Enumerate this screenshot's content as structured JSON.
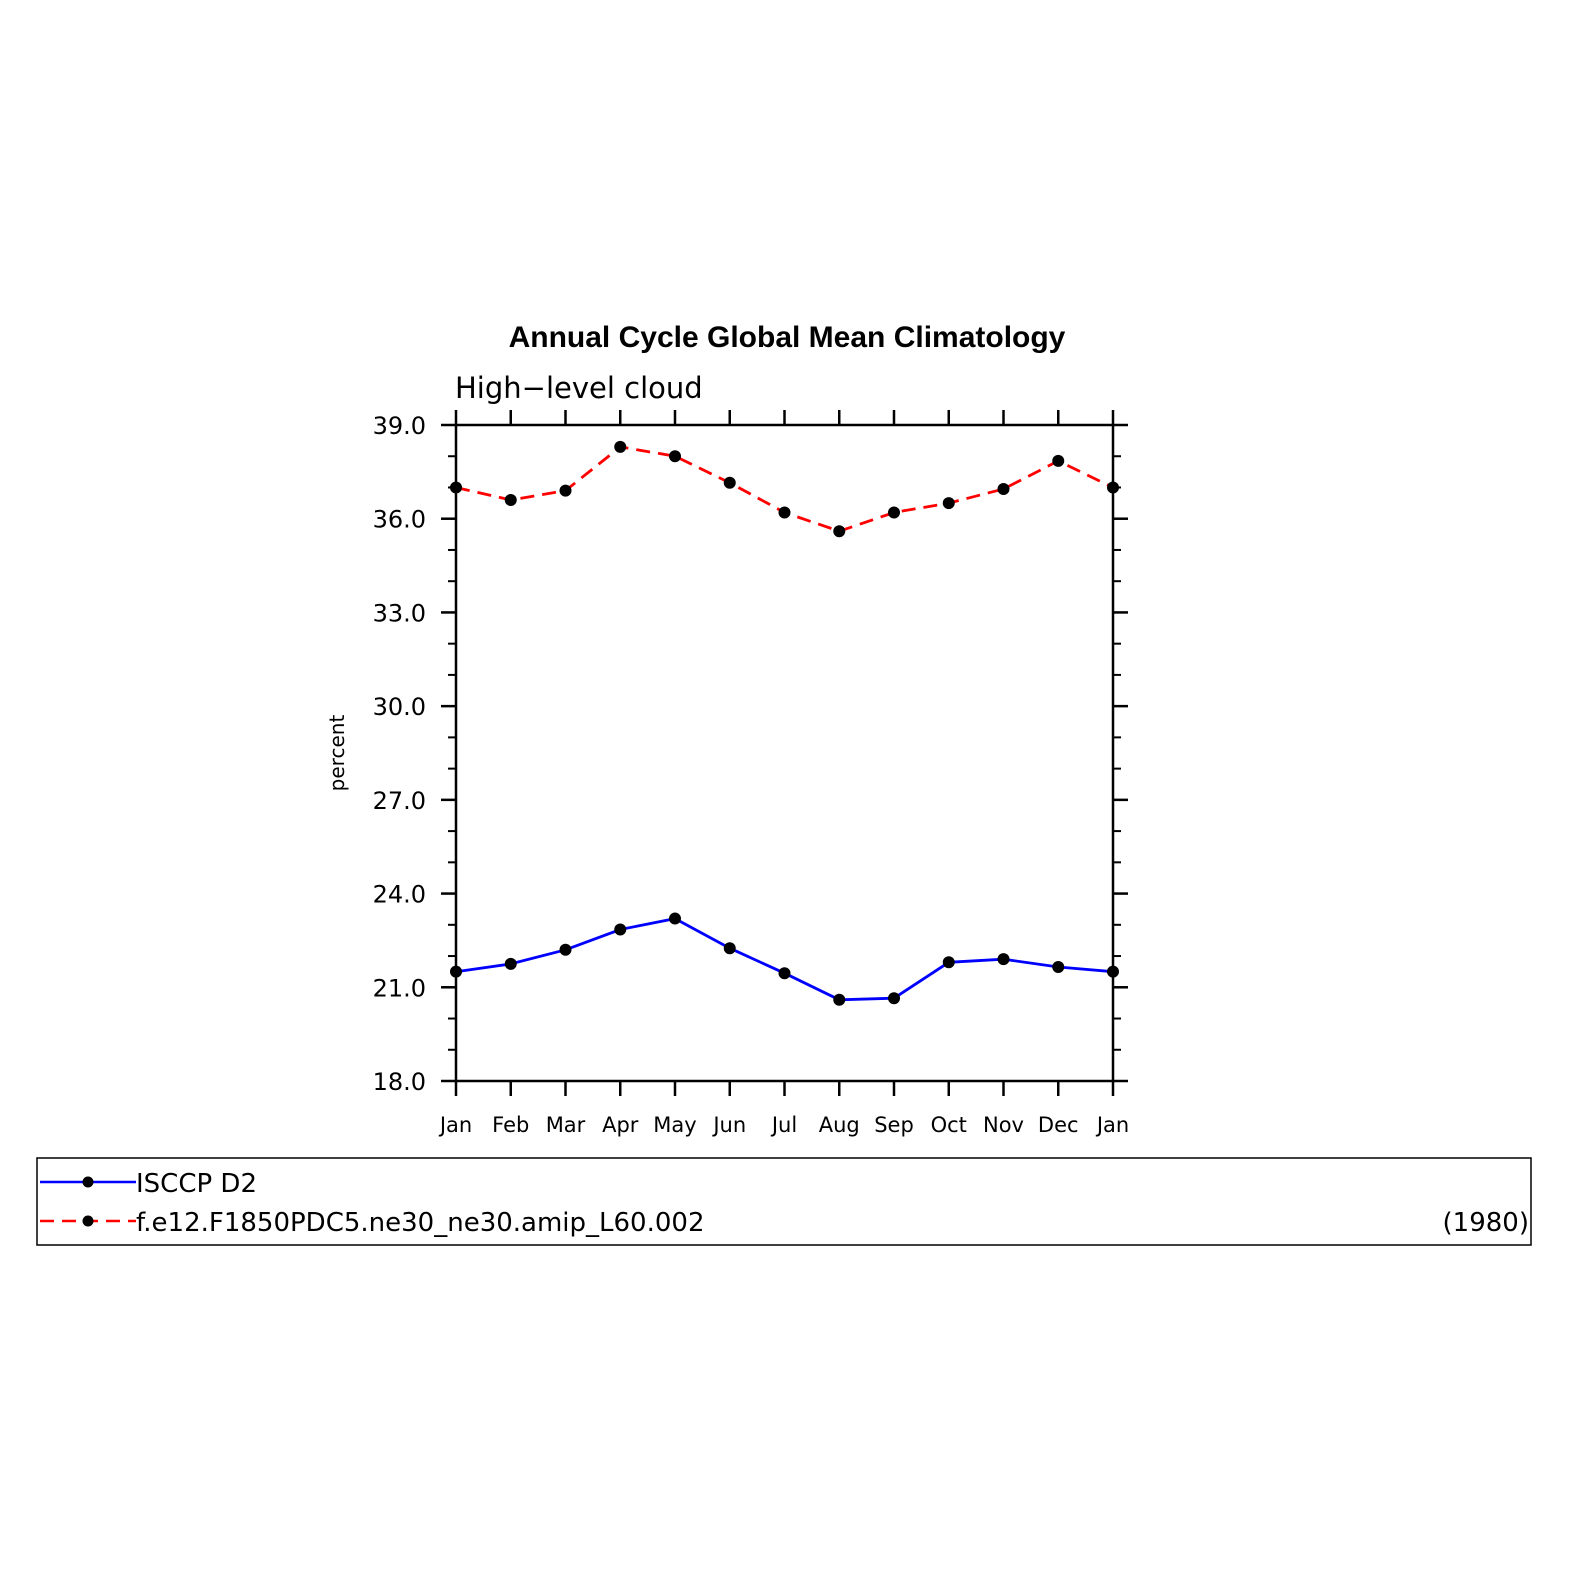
{
  "chart_data": {
    "type": "line",
    "title": "Annual Cycle Global Mean Climatology",
    "subtitle": "High−level cloud",
    "xlabel": "",
    "ylabel": "percent",
    "categories": [
      "Jan",
      "Feb",
      "Mar",
      "Apr",
      "May",
      "Jun",
      "Jul",
      "Aug",
      "Sep",
      "Oct",
      "Nov",
      "Dec",
      "Jan"
    ],
    "ylim": [
      18.0,
      39.0
    ],
    "yticks": [
      "18.0",
      "21.0",
      "24.0",
      "27.0",
      "30.0",
      "33.0",
      "36.0",
      "39.0"
    ],
    "grid": false,
    "legend_position": "bottom",
    "series": [
      {
        "name": "ISCCP D2",
        "color": "#0000ff",
        "dash": "solid",
        "values": [
          21.5,
          21.75,
          22.2,
          22.85,
          23.2,
          22.25,
          21.45,
          20.6,
          20.65,
          21.8,
          21.9,
          21.65,
          21.5
        ]
      },
      {
        "name": "f.e12.F1850PDC5.ne30_ne30.amip_L60.002",
        "color": "#ff0000",
        "dash": "dashed",
        "values": [
          37.0,
          36.6,
          36.9,
          38.3,
          38.0,
          37.15,
          36.2,
          35.6,
          36.2,
          36.5,
          36.95,
          37.85,
          37.0
        ]
      }
    ],
    "legend_note": "(1980)"
  }
}
